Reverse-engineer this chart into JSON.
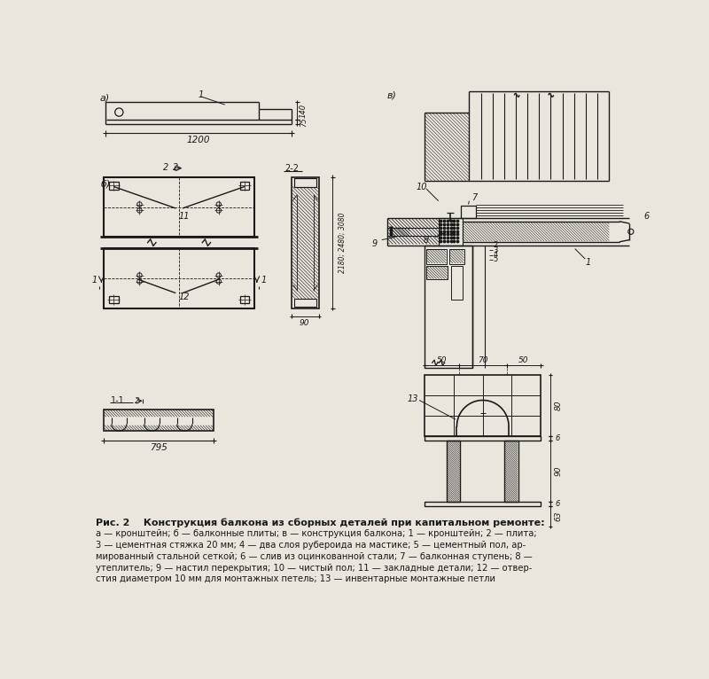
{
  "bg_color": "#eae6de",
  "line_color": "#1a1a1a",
  "title_line": "Рис. 2    Конструкция балкона из сборных деталей при капитальном ремонте:",
  "cap1": "а — кронштейн; б — балконные плиты; в — конструкция балкона; 1 — кронштейн; 2 — плита;",
  "cap2": "3 — цементная стяжка 20 мм; 4 — два слоя рубероида на мастике; 5 — цементный пол, ар-",
  "cap3": "мированный стальной сеткой; 6 — слив из оцинкованной стали; 7 — балконная ступень; 8 —",
  "cap4": "утеплитель; 9 — настил перекрытия; 10 — чистый пол; 11 — закладные детали; 12 — отвер-",
  "cap5": "стия диаметром 10 мм для монтажных петель; 13 — инвентарные монтажные петли"
}
